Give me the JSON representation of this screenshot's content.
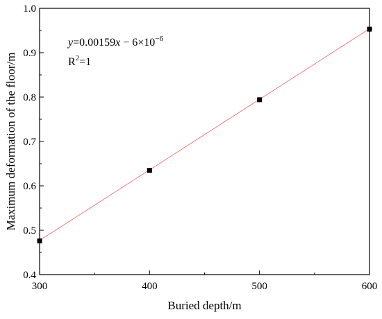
{
  "chart_data": {
    "type": "scatter",
    "title": "",
    "xlabel": "Buried depth/m",
    "ylabel": "Maximum deformation of the floor/m",
    "xlim": [
      300,
      600
    ],
    "ylim": [
      0.4,
      1.0
    ],
    "xticks": [
      300,
      400,
      500,
      600
    ],
    "yticks": [
      0.4,
      0.5,
      0.6,
      0.7,
      0.8,
      0.9,
      1.0
    ],
    "xtick_labels": [
      "300",
      "400",
      "500",
      "600"
    ],
    "ytick_labels": [
      "0.4",
      "0.5",
      "0.6",
      "0.7",
      "0.8",
      "0.9",
      "1.0"
    ],
    "grid": false,
    "legend": "none",
    "series": [
      {
        "type": "scatter",
        "x": [
          300,
          400,
          500,
          600
        ],
        "y": [
          0.476,
          0.635,
          0.794,
          0.953
        ],
        "color": "#000000",
        "marker": "square"
      },
      {
        "type": "line",
        "x": [
          300,
          600
        ],
        "y": [
          0.47699,
          0.95399
        ],
        "color": "#f08080"
      }
    ],
    "annotations": {
      "equation_y": "y",
      "equation_rest": "=0.00159",
      "equation_x": "x",
      "equation_tail": " − 6×10",
      "equation_exp": "−6",
      "r2_R": "R",
      "r2_sup": "2",
      "r2_val": "=1"
    }
  }
}
